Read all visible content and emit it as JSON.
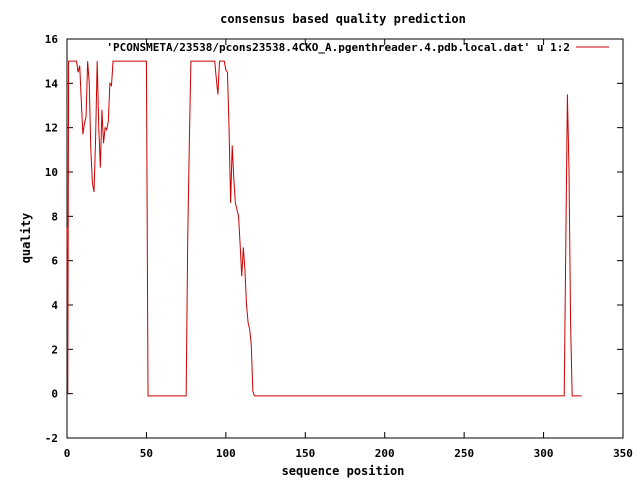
{
  "chart_data": {
    "type": "line",
    "title": "consensus based quality prediction",
    "xlabel": "sequence position",
    "ylabel": "quality",
    "xlim": [
      0,
      350
    ],
    "ylim": [
      -2,
      16
    ],
    "xticks": [
      0,
      50,
      100,
      150,
      200,
      250,
      300,
      350
    ],
    "yticks": [
      -2,
      0,
      2,
      4,
      6,
      8,
      10,
      12,
      14,
      16
    ],
    "legend_position": "top-right",
    "grid": false,
    "series_color": "#cc0000",
    "series": [
      {
        "name": "'PCONSMETA/23538/pcons23538.4CKO_A.pgenthreader.4.pdb.local.dat' u 1:2",
        "points": [
          [
            0,
            7.5
          ],
          [
            0.5,
            0
          ],
          [
            1,
            15
          ],
          [
            2,
            15
          ],
          [
            3,
            15
          ],
          [
            4,
            15
          ],
          [
            5,
            15
          ],
          [
            6,
            15
          ],
          [
            7,
            14.5
          ],
          [
            8,
            14.8
          ],
          [
            9,
            13.2
          ],
          [
            10,
            11.7
          ],
          [
            11,
            12.2
          ],
          [
            12,
            12.5
          ],
          [
            13,
            15
          ],
          [
            14,
            14
          ],
          [
            15,
            11
          ],
          [
            16,
            9.5
          ],
          [
            17,
            9.1
          ],
          [
            18,
            11.5
          ],
          [
            19,
            15
          ],
          [
            20,
            12
          ],
          [
            21,
            10.2
          ],
          [
            22,
            12.8
          ],
          [
            23,
            11.3
          ],
          [
            24,
            12
          ],
          [
            25,
            11.9
          ],
          [
            26,
            12.3
          ],
          [
            27,
            14
          ],
          [
            28,
            13.9
          ],
          [
            29,
            15
          ],
          [
            30,
            15
          ],
          [
            35,
            15
          ],
          [
            40,
            15
          ],
          [
            45,
            15
          ],
          [
            50,
            15
          ],
          [
            50.5,
            7.5
          ],
          [
            51,
            -0.1
          ],
          [
            60,
            -0.1
          ],
          [
            70,
            -0.1
          ],
          [
            75,
            -0.1
          ],
          [
            76,
            7
          ],
          [
            77,
            11.3
          ],
          [
            78,
            15
          ],
          [
            85,
            15
          ],
          [
            90,
            15
          ],
          [
            93,
            15
          ],
          [
            94,
            14.2
          ],
          [
            95,
            13.5
          ],
          [
            96,
            15
          ],
          [
            97,
            15
          ],
          [
            98,
            15
          ],
          [
            99,
            15
          ],
          [
            100,
            14.6
          ],
          [
            101,
            14.5
          ],
          [
            102,
            12
          ],
          [
            103,
            8.6
          ],
          [
            104,
            11.2
          ],
          [
            105,
            9.7
          ],
          [
            106,
            8.6
          ],
          [
            107,
            8.3
          ],
          [
            108,
            8
          ],
          [
            109,
            6.7
          ],
          [
            110,
            5.3
          ],
          [
            111,
            6.6
          ],
          [
            112,
            5.6
          ],
          [
            113,
            4
          ],
          [
            114,
            3.2
          ],
          [
            115,
            2.9
          ],
          [
            116,
            2.2
          ],
          [
            117,
            0.1
          ],
          [
            118,
            -0.1
          ],
          [
            150,
            -0.1
          ],
          [
            200,
            -0.1
          ],
          [
            250,
            -0.1
          ],
          [
            300,
            -0.1
          ],
          [
            313,
            -0.1
          ],
          [
            314,
            6.8
          ],
          [
            315,
            13.5
          ],
          [
            316,
            10.1
          ],
          [
            317,
            3.2
          ],
          [
            318,
            -0.1
          ],
          [
            319,
            -0.1
          ],
          [
            324,
            -0.1
          ]
        ]
      }
    ]
  }
}
